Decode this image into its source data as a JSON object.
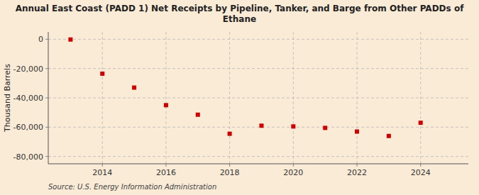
{
  "chart_data": {
    "type": "scatter",
    "title": "Annual East Coast (PADD 1) Net Receipts by Pipeline, Tanker, and Barge from Other PADDs of Ethane",
    "y_label": "Thousand Barrels",
    "source": "Source: U.S. Energy Information Administration",
    "x": [
      2013,
      2014,
      2015,
      2016,
      2017,
      2018,
      2019,
      2020,
      2021,
      2022,
      2023,
      2024
    ],
    "values": [
      -200,
      -23500,
      -33000,
      -45000,
      -51500,
      -64500,
      -59000,
      -59500,
      -60500,
      -63000,
      -66000,
      -57000
    ],
    "color": "#cc0000",
    "marker": "square",
    "xlim": [
      2012.3,
      2025.5
    ],
    "xticks": [
      2014,
      2016,
      2018,
      2020,
      2022,
      2024
    ],
    "ylim": [
      -85000,
      5000
    ],
    "yticks": [
      0,
      {
        "value": -20000,
        "label": "-20,000"
      },
      {
        "value": -40000,
        "label": "-40,000"
      },
      {
        "value": -60000,
        "label": "-60,000"
      },
      {
        "value": -80000,
        "label": "-80,000"
      }
    ],
    "grid": true
  }
}
